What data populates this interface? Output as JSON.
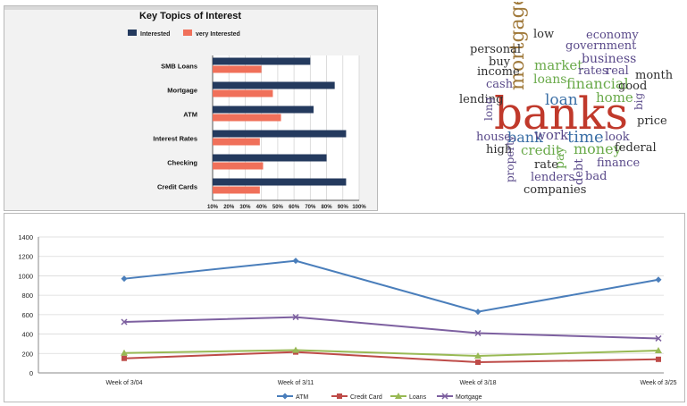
{
  "chart_data": [
    {
      "type": "bar",
      "orientation": "horizontal",
      "title": "Key Topics of Interest",
      "categories": [
        "SMB Loans",
        "Mortgage",
        "ATM",
        "Interest Rates",
        "Checking",
        "Credit Cards"
      ],
      "series": [
        {
          "name": "Interested",
          "color": "#243a5e",
          "values": [
            0.7,
            0.85,
            0.72,
            0.92,
            0.8,
            0.92
          ]
        },
        {
          "name": "very Interested",
          "color": "#f0705a",
          "values": [
            0.4,
            0.47,
            0.52,
            0.39,
            0.41,
            0.39
          ]
        }
      ],
      "xlim": [
        0.1,
        1.0
      ],
      "xticks": [
        "10%",
        "20%",
        "30%",
        "40%",
        "50%",
        "60%",
        "70%",
        "80%",
        "90%",
        "100%"
      ],
      "grid": true,
      "legend": "top"
    },
    {
      "type": "wordcloud",
      "words": [
        {
          "text": "banks",
          "color": "#c0392b"
        },
        {
          "text": "mortgage",
          "color": "#a0793a"
        },
        {
          "text": "low",
          "color": "#2f2f2f"
        },
        {
          "text": "economy",
          "color": "#5a4a8a"
        },
        {
          "text": "government",
          "color": "#5a4a8a"
        },
        {
          "text": "personal",
          "color": "#2f2f2f"
        },
        {
          "text": "business",
          "color": "#5a4a8a"
        },
        {
          "text": "buy",
          "color": "#2f2f2f"
        },
        {
          "text": "market",
          "color": "#6aaa4a"
        },
        {
          "text": "rates",
          "color": "#5a4a8a"
        },
        {
          "text": "real",
          "color": "#5a4a8a"
        },
        {
          "text": "income",
          "color": "#2f2f2f"
        },
        {
          "text": "month",
          "color": "#2f2f2f"
        },
        {
          "text": "loans",
          "color": "#6aaa4a"
        },
        {
          "text": "cash",
          "color": "#5a4a8a"
        },
        {
          "text": "financial",
          "color": "#6aaa4a"
        },
        {
          "text": "good",
          "color": "#2f2f2f"
        },
        {
          "text": "home",
          "color": "#6aaa4a"
        },
        {
          "text": "lending",
          "color": "#2f2f2f"
        },
        {
          "text": "loan",
          "color": "#3a6ea5"
        },
        {
          "text": "big",
          "color": "#5a4a8a"
        },
        {
          "text": "long",
          "color": "#5a4a8a"
        },
        {
          "text": "price",
          "color": "#2f2f2f"
        },
        {
          "text": "house",
          "color": "#5a4a8a"
        },
        {
          "text": "bank",
          "color": "#3a6ea5"
        },
        {
          "text": "work",
          "color": "#5a4a8a"
        },
        {
          "text": "time",
          "color": "#3a6ea5"
        },
        {
          "text": "look",
          "color": "#5a4a8a"
        },
        {
          "text": "high",
          "color": "#2f2f2f"
        },
        {
          "text": "credit",
          "color": "#6aaa4a"
        },
        {
          "text": "pay",
          "color": "#6aaa4a"
        },
        {
          "text": "money",
          "color": "#6aaa4a"
        },
        {
          "text": "federal",
          "color": "#2f2f2f"
        },
        {
          "text": "rate",
          "color": "#2f2f2f"
        },
        {
          "text": "finance",
          "color": "#5a4a8a"
        },
        {
          "text": "property",
          "color": "#5a4a8a"
        },
        {
          "text": "lenders",
          "color": "#5a4a8a"
        },
        {
          "text": "debt",
          "color": "#5a4a8a"
        },
        {
          "text": "bad",
          "color": "#5a4a8a"
        },
        {
          "text": "companies",
          "color": "#2f2f2f"
        }
      ]
    },
    {
      "type": "line",
      "categories": [
        "Week of 3/04",
        "Week of 3/11",
        "Week of 3/18",
        "Week of 3/25"
      ],
      "series": [
        {
          "name": "ATM",
          "color": "#4a7ebb",
          "marker": "diamond",
          "values": [
            970,
            1155,
            630,
            960
          ]
        },
        {
          "name": "Credit Card",
          "color": "#be4b48",
          "marker": "square",
          "values": [
            150,
            215,
            110,
            140
          ]
        },
        {
          "name": "Loans",
          "color": "#98b954",
          "marker": "triangle",
          "values": [
            205,
            235,
            175,
            230
          ]
        },
        {
          "name": "Mortgage",
          "color": "#7d60a0",
          "marker": "x",
          "values": [
            525,
            575,
            410,
            355
          ]
        }
      ],
      "ylim": [
        0,
        1400
      ],
      "yticks": [
        0,
        200,
        400,
        600,
        800,
        1000,
        1200,
        1400
      ],
      "grid": true,
      "legend": "bottom"
    }
  ]
}
